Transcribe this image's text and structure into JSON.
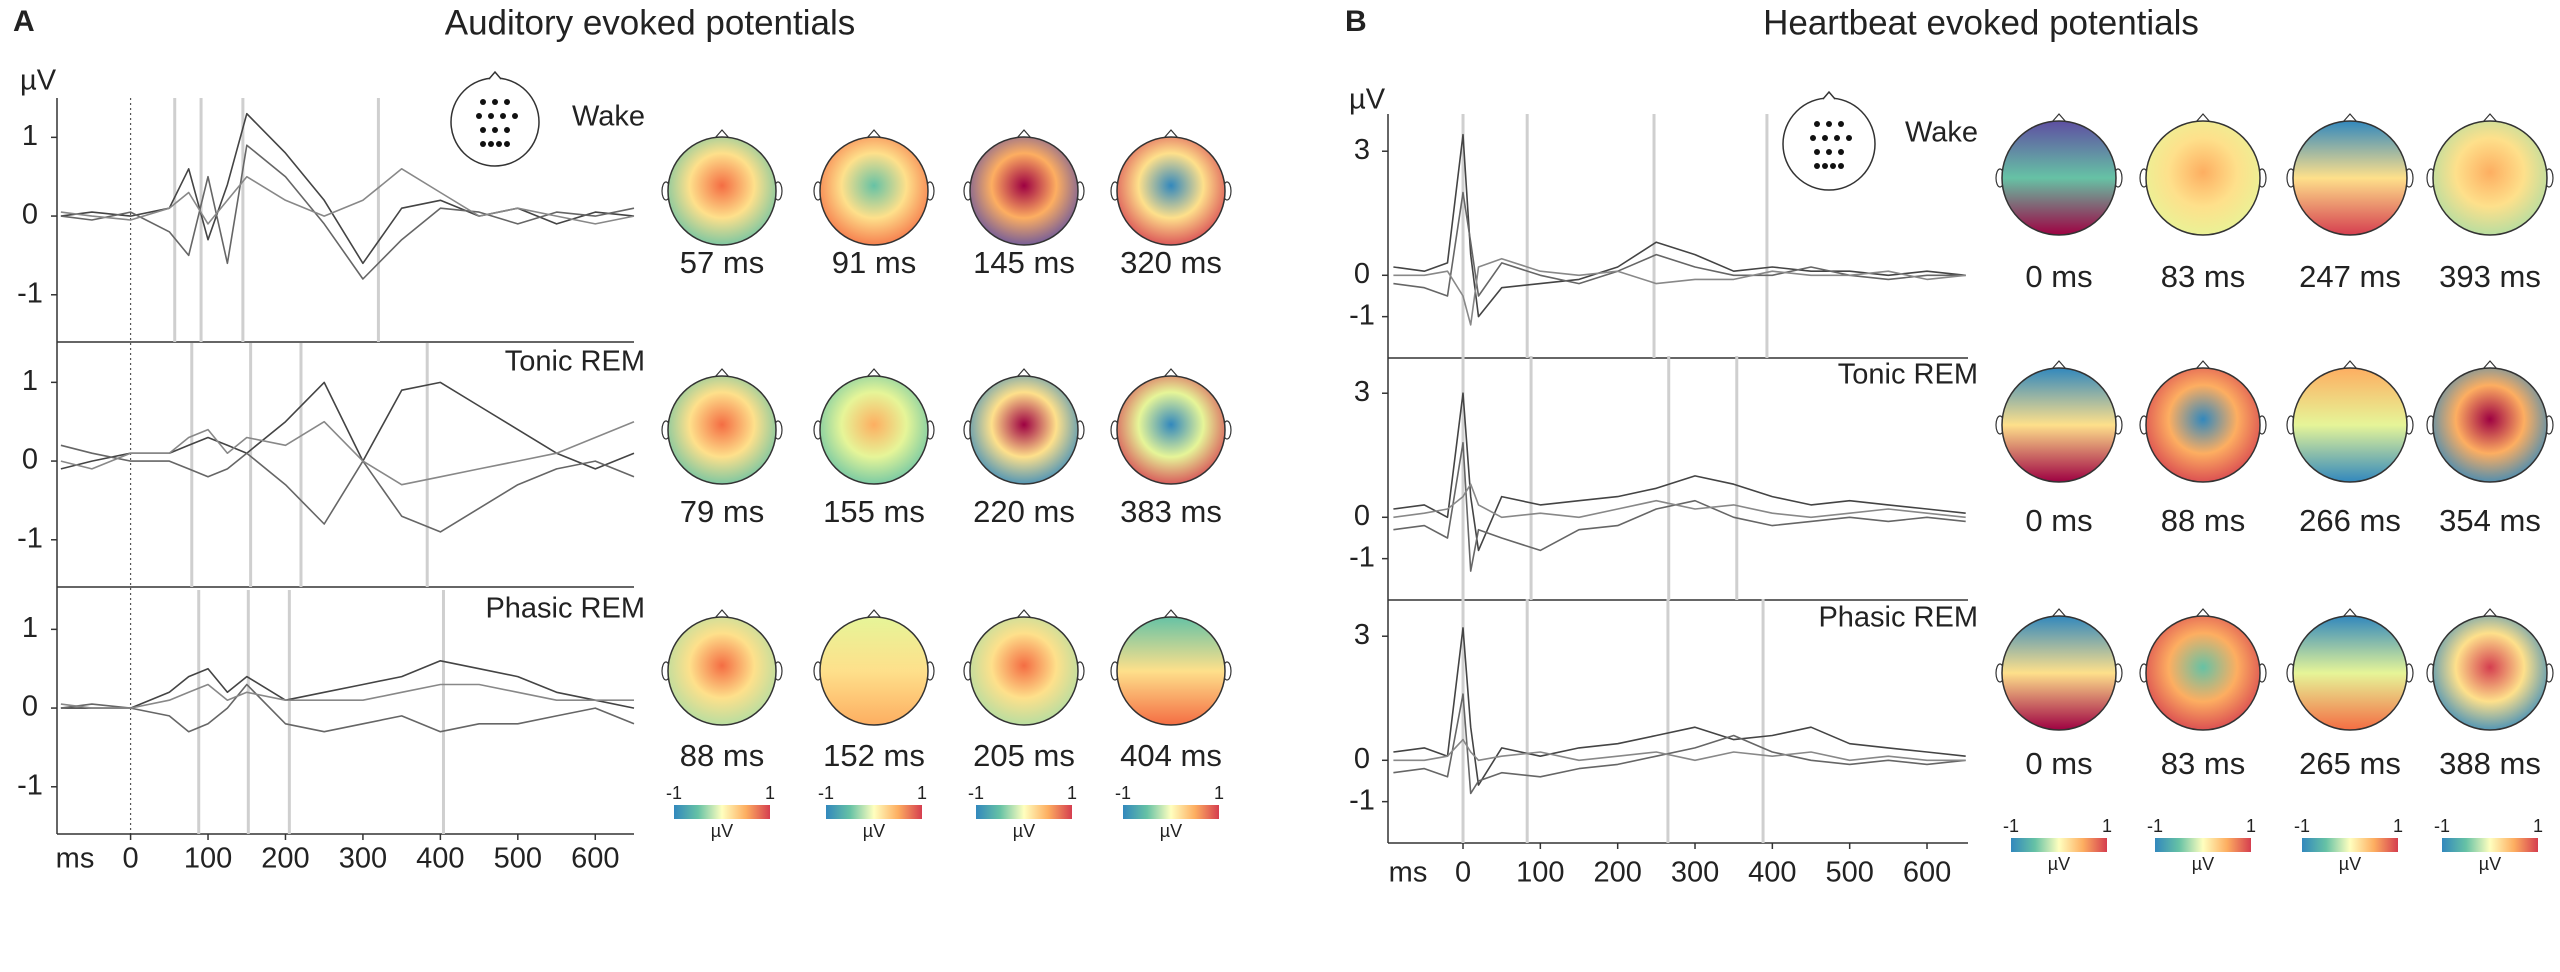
{
  "chart_data": [
    {
      "type": "line",
      "label": "A",
      "title": "Auditory evoked potentials",
      "y_label": "µV",
      "x_label": "ms",
      "xlim": [
        -95,
        650
      ],
      "xticks": [
        0,
        100,
        200,
        300,
        400,
        500,
        600
      ],
      "x": [
        -90,
        -50,
        0,
        50,
        75,
        100,
        125,
        150,
        200,
        250,
        300,
        350,
        400,
        450,
        500,
        550,
        600,
        650
      ],
      "colorbar": {
        "ticks": [
          -1,
          1
        ],
        "label": "µV",
        "colors": [
          "#3288bd",
          "#66c2a5",
          "#ffffbf",
          "#fdae61",
          "#d53e4f"
        ]
      },
      "panels": [
        {
          "name": "Wake",
          "ylim": [
            -1.6,
            1.5
          ],
          "yticks": [
            -1,
            0,
            1
          ],
          "series": [
            {
              "color": "#444444",
              "values": [
                0,
                0.05,
                0,
                0.1,
                0.6,
                -0.3,
                0.4,
                1.3,
                0.8,
                0.2,
                -0.6,
                0.1,
                0.2,
                0,
                0.1,
                -0.1,
                0.05,
                0
              ]
            },
            {
              "color": "#666666",
              "values": [
                0,
                -0.05,
                0.05,
                -0.2,
                -0.5,
                0.5,
                -0.6,
                0.9,
                0.5,
                -0.1,
                -0.8,
                -0.3,
                0.1,
                0.05,
                -0.1,
                0.05,
                0,
                0.1
              ]
            },
            {
              "color": "#888888",
              "values": [
                0.05,
                0,
                -0.05,
                0.1,
                0.3,
                -0.1,
                0.2,
                0.5,
                0.2,
                0,
                0.2,
                0.6,
                0.3,
                0,
                0.1,
                0,
                -0.1,
                0
              ]
            }
          ],
          "topomaps": [
            {
              "latency": {
                "value": 57,
                "label": "57 ms"
              },
              "gradient": "radial",
              "colors": [
                "#f46d43",
                "#fee08b",
                "#66c2a5"
              ]
            },
            {
              "latency": {
                "value": 91,
                "label": "91 ms"
              },
              "gradient": "radial",
              "colors": [
                "#66c2a5",
                "#fee08b",
                "#f46d43"
              ]
            },
            {
              "latency": {
                "value": 145,
                "label": "145 ms"
              },
              "gradient": "radial",
              "colors": [
                "#9e0142",
                "#fdae61",
                "#5e4fa2"
              ]
            },
            {
              "latency": {
                "value": 320,
                "label": "320 ms"
              },
              "gradient": "radial",
              "colors": [
                "#3288bd",
                "#fee08b",
                "#d53e4f"
              ]
            }
          ]
        },
        {
          "name": "Tonic REM",
          "ylim": [
            -1.6,
            1.5
          ],
          "yticks": [
            -1,
            0,
            1
          ],
          "series": [
            {
              "color": "#444444",
              "values": [
                -0.1,
                0,
                0.1,
                0.1,
                0.2,
                0.3,
                0.2,
                0.1,
                0.5,
                1.0,
                0,
                0.9,
                1.0,
                0.7,
                0.4,
                0.1,
                -0.1,
                0.1
              ]
            },
            {
              "color": "#666666",
              "values": [
                0.2,
                0.1,
                0,
                0,
                -0.1,
                -0.2,
                -0.1,
                0.1,
                -0.3,
                -0.8,
                0,
                -0.7,
                -0.9,
                -0.6,
                -0.3,
                -0.1,
                0,
                -0.2
              ]
            },
            {
              "color": "#888888",
              "values": [
                0,
                -0.1,
                0.1,
                0.1,
                0.3,
                0.4,
                0.1,
                0.3,
                0.2,
                0.5,
                0,
                -0.3,
                -0.2,
                -0.1,
                0,
                0.1,
                0.3,
                0.5
              ]
            }
          ],
          "topomaps": [
            {
              "latency": {
                "value": 79,
                "label": "79 ms"
              },
              "gradient": "radial",
              "colors": [
                "#f46d43",
                "#fee08b",
                "#66c2a5"
              ]
            },
            {
              "latency": {
                "value": 155,
                "label": "155 ms"
              },
              "gradient": "radial",
              "colors": [
                "#fdae61",
                "#e6f598",
                "#66c2a5"
              ]
            },
            {
              "latency": {
                "value": 220,
                "label": "220 ms"
              },
              "gradient": "radial",
              "colors": [
                "#9e0142",
                "#fee08b",
                "#3288bd"
              ]
            },
            {
              "latency": {
                "value": 383,
                "label": "383 ms"
              },
              "gradient": "radial",
              "colors": [
                "#3288bd",
                "#e6f598",
                "#d53e4f"
              ]
            }
          ]
        },
        {
          "name": "Phasic REM",
          "ylim": [
            -1.6,
            1.5
          ],
          "yticks": [
            -1,
            0,
            1
          ],
          "series": [
            {
              "color": "#444444",
              "values": [
                0,
                0,
                0,
                0.2,
                0.4,
                0.5,
                0.2,
                0.4,
                0.1,
                0.2,
                0.3,
                0.4,
                0.6,
                0.5,
                0.4,
                0.2,
                0.1,
                0
              ]
            },
            {
              "color": "#666666",
              "values": [
                0,
                0.05,
                0,
                -0.1,
                -0.3,
                -0.2,
                0,
                0.3,
                -0.2,
                -0.3,
                -0.2,
                -0.1,
                -0.3,
                -0.2,
                -0.2,
                -0.1,
                0,
                -0.2
              ]
            },
            {
              "color": "#888888",
              "values": [
                0.05,
                0,
                0,
                0.1,
                0.2,
                0.3,
                0.1,
                0.2,
                0.1,
                0.1,
                0.1,
                0.2,
                0.3,
                0.3,
                0.2,
                0.1,
                0.1,
                0.1
              ]
            }
          ],
          "topomaps": [
            {
              "latency": {
                "value": 88,
                "label": "88 ms"
              },
              "gradient": "radial",
              "colors": [
                "#f46d43",
                "#fee08b",
                "#abdda4"
              ]
            },
            {
              "latency": {
                "value": 152,
                "label": "152 ms"
              },
              "gradient": "linear",
              "colors": [
                "#e6f598",
                "#fee08b",
                "#fdae61"
              ]
            },
            {
              "latency": {
                "value": 205,
                "label": "205 ms"
              },
              "gradient": "radial",
              "colors": [
                "#f46d43",
                "#fee08b",
                "#abdda4"
              ]
            },
            {
              "latency": {
                "value": 404,
                "label": "404 ms"
              },
              "gradient": "linear",
              "colors": [
                "#66c2a5",
                "#fee08b",
                "#f46d43"
              ]
            }
          ]
        }
      ]
    },
    {
      "type": "line",
      "label": "B",
      "title": "Heartbeat evoked potentials",
      "y_label": "µV",
      "x_label": "ms",
      "xlim": [
        -97,
        653
      ],
      "xticks": [
        0,
        100,
        200,
        300,
        400,
        500,
        600
      ],
      "x": [
        -90,
        -50,
        -20,
        0,
        10,
        20,
        50,
        100,
        150,
        200,
        250,
        300,
        350,
        400,
        450,
        500,
        550,
        600,
        650
      ],
      "colorbar": {
        "ticks": [
          -1,
          1
        ],
        "label": "µV",
        "colors": [
          "#3288bd",
          "#66c2a5",
          "#ffffbf",
          "#fdae61",
          "#d53e4f"
        ]
      },
      "panels": [
        {
          "name": "Wake",
          "ylim": [
            -2,
            3.9
          ],
          "yticks": [
            -1,
            0,
            3
          ],
          "series": [
            {
              "color": "#444444",
              "values": [
                0.2,
                0.1,
                0.3,
                3.4,
                0.5,
                -1.0,
                -0.3,
                -0.2,
                -0.1,
                0.2,
                0.8,
                0.5,
                0.1,
                0.2,
                0.1,
                0.1,
                0,
                0.1,
                0
              ]
            },
            {
              "color": "#666666",
              "values": [
                -0.2,
                -0.3,
                -0.5,
                2.0,
                0.8,
                -0.5,
                0.3,
                0,
                -0.2,
                0.1,
                0.5,
                0.2,
                0,
                0,
                0.2,
                0,
                -0.1,
                0,
                0
              ]
            },
            {
              "color": "#888888",
              "values": [
                0,
                0,
                0.1,
                -0.5,
                -1.2,
                0.2,
                0.4,
                0.1,
                0,
                0.1,
                -0.2,
                -0.1,
                -0.1,
                0.1,
                0,
                0,
                0.1,
                -0.1,
                0
              ]
            }
          ],
          "topomaps": [
            {
              "latency": {
                "value": 0,
                "label": "0 ms"
              },
              "gradient": "linear",
              "colors": [
                "#5e4fa2",
                "#66c2a5",
                "#9e0142"
              ]
            },
            {
              "latency": {
                "value": 83,
                "label": "83 ms"
              },
              "gradient": "radial",
              "colors": [
                "#fdae61",
                "#fee08b",
                "#e6f598"
              ]
            },
            {
              "latency": {
                "value": 247,
                "label": "247 ms"
              },
              "gradient": "linear",
              "colors": [
                "#3288bd",
                "#fee08b",
                "#d53e4f"
              ]
            },
            {
              "latency": {
                "value": 393,
                "label": "393 ms"
              },
              "gradient": "radial",
              "colors": [
                "#fdae61",
                "#fee08b",
                "#abdda4"
              ]
            }
          ]
        },
        {
          "name": "Tonic REM",
          "ylim": [
            -2,
            3.9
          ],
          "yticks": [
            -1,
            0,
            3
          ],
          "series": [
            {
              "color": "#444444",
              "values": [
                0.2,
                0.3,
                0,
                3.0,
                0.5,
                -0.8,
                0.5,
                0.3,
                0.4,
                0.5,
                0.7,
                1.0,
                0.8,
                0.5,
                0.3,
                0.4,
                0.3,
                0.2,
                0.1
              ]
            },
            {
              "color": "#666666",
              "values": [
                -0.3,
                -0.2,
                -0.5,
                1.8,
                -1.3,
                -0.3,
                -0.5,
                -0.8,
                -0.3,
                -0.2,
                0.2,
                0.4,
                0,
                -0.2,
                -0.1,
                0,
                -0.1,
                0,
                -0.1
              ]
            },
            {
              "color": "#888888",
              "values": [
                0,
                0.1,
                0.2,
                0.5,
                0.8,
                0.3,
                0,
                0.1,
                0,
                0.2,
                0.4,
                0.2,
                0.3,
                0.1,
                0,
                0.1,
                0.2,
                0.1,
                0
              ]
            }
          ],
          "topomaps": [
            {
              "latency": {
                "value": 0,
                "label": "0 ms"
              },
              "gradient": "linear",
              "colors": [
                "#3288bd",
                "#fee08b",
                "#9e0142"
              ]
            },
            {
              "latency": {
                "value": 88,
                "label": "88 ms"
              },
              "gradient": "radial",
              "colors": [
                "#3288bd",
                "#fdae61",
                "#d53e4f"
              ]
            },
            {
              "latency": {
                "value": 266,
                "label": "266 ms"
              },
              "gradient": "linear",
              "colors": [
                "#fdae61",
                "#e6f598",
                "#3288bd"
              ]
            },
            {
              "latency": {
                "value": 354,
                "label": "354 ms"
              },
              "gradient": "radial",
              "colors": [
                "#9e0142",
                "#fdae61",
                "#3288bd"
              ]
            }
          ]
        },
        {
          "name": "Phasic REM",
          "ylim": [
            -2,
            3.9
          ],
          "yticks": [
            -1,
            0,
            3
          ],
          "series": [
            {
              "color": "#444444",
              "values": [
                0.2,
                0.3,
                0.1,
                3.2,
                0.8,
                -0.6,
                0.3,
                0.1,
                0.3,
                0.4,
                0.6,
                0.8,
                0.5,
                0.6,
                0.8,
                0.4,
                0.3,
                0.2,
                0.1
              ]
            },
            {
              "color": "#666666",
              "values": [
                -0.3,
                -0.2,
                -0.4,
                1.6,
                -0.8,
                -0.5,
                -0.3,
                -0.4,
                -0.2,
                -0.1,
                0.1,
                0.3,
                0.6,
                0.2,
                0,
                -0.1,
                0,
                -0.1,
                0
              ]
            },
            {
              "color": "#888888",
              "values": [
                0,
                0,
                0.1,
                0.5,
                0.2,
                0,
                0.1,
                0.2,
                0,
                0.1,
                0.2,
                0,
                0.2,
                0.1,
                0.2,
                0,
                0.1,
                0,
                0
              ]
            }
          ],
          "topomaps": [
            {
              "latency": {
                "value": 0,
                "label": "0 ms"
              },
              "gradient": "linear",
              "colors": [
                "#3288bd",
                "#fee08b",
                "#9e0142"
              ]
            },
            {
              "latency": {
                "value": 83,
                "label": "83 ms"
              },
              "gradient": "radial",
              "colors": [
                "#66c2a5",
                "#fdae61",
                "#d53e4f"
              ]
            },
            {
              "latency": {
                "value": 265,
                "label": "265 ms"
              },
              "gradient": "linear",
              "colors": [
                "#3288bd",
                "#e6f598",
                "#f46d43"
              ]
            },
            {
              "latency": {
                "value": 388,
                "label": "388 ms"
              },
              "gradient": "radial",
              "colors": [
                "#d53e4f",
                "#fee08b",
                "#3288bd"
              ]
            }
          ]
        }
      ]
    }
  ]
}
